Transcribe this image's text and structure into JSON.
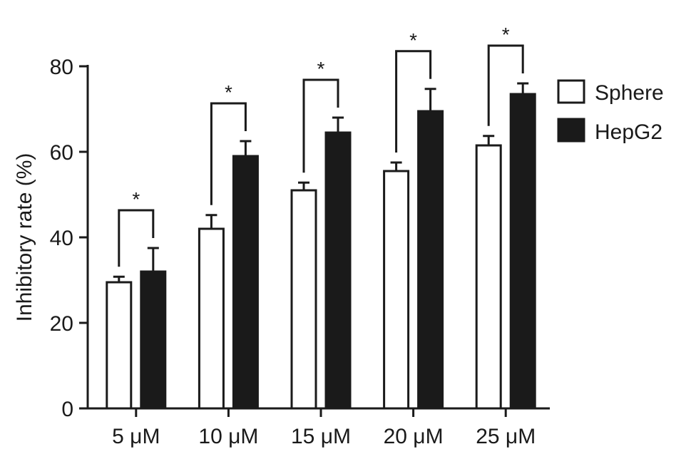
{
  "chart_data": {
    "type": "bar",
    "title": "",
    "xlabel": "",
    "ylabel": "Inhibitory rate (%)",
    "ylim": [
      0,
      80
    ],
    "yticks": [
      0,
      20,
      40,
      60,
      80
    ],
    "grid": false,
    "legend_position": "top-right",
    "categories": [
      "5 μM",
      "10 μM",
      "15 μM",
      "20 μM",
      "25 μM"
    ],
    "series": [
      {
        "name": "Sphere",
        "fill": "#ffffff",
        "stroke": "#1a1a1a",
        "values": [
          29.5,
          42.0,
          51.0,
          55.5,
          61.5
        ],
        "errors": [
          1.3,
          3.2,
          1.8,
          2.0,
          2.2
        ]
      },
      {
        "name": "HepG2",
        "fill": "#1a1a1a",
        "stroke": "#1a1a1a",
        "values": [
          32.0,
          59.0,
          64.5,
          69.5,
          73.5
        ],
        "errors": [
          5.5,
          3.5,
          3.5,
          5.2,
          2.5
        ]
      }
    ],
    "annotations": [
      {
        "category": "5 μM",
        "text": "*"
      },
      {
        "category": "10 μM",
        "text": "*"
      },
      {
        "category": "15 μM",
        "text": "*"
      },
      {
        "category": "20 μM",
        "text": "*"
      },
      {
        "category": "25 μM",
        "text": "*"
      }
    ]
  }
}
